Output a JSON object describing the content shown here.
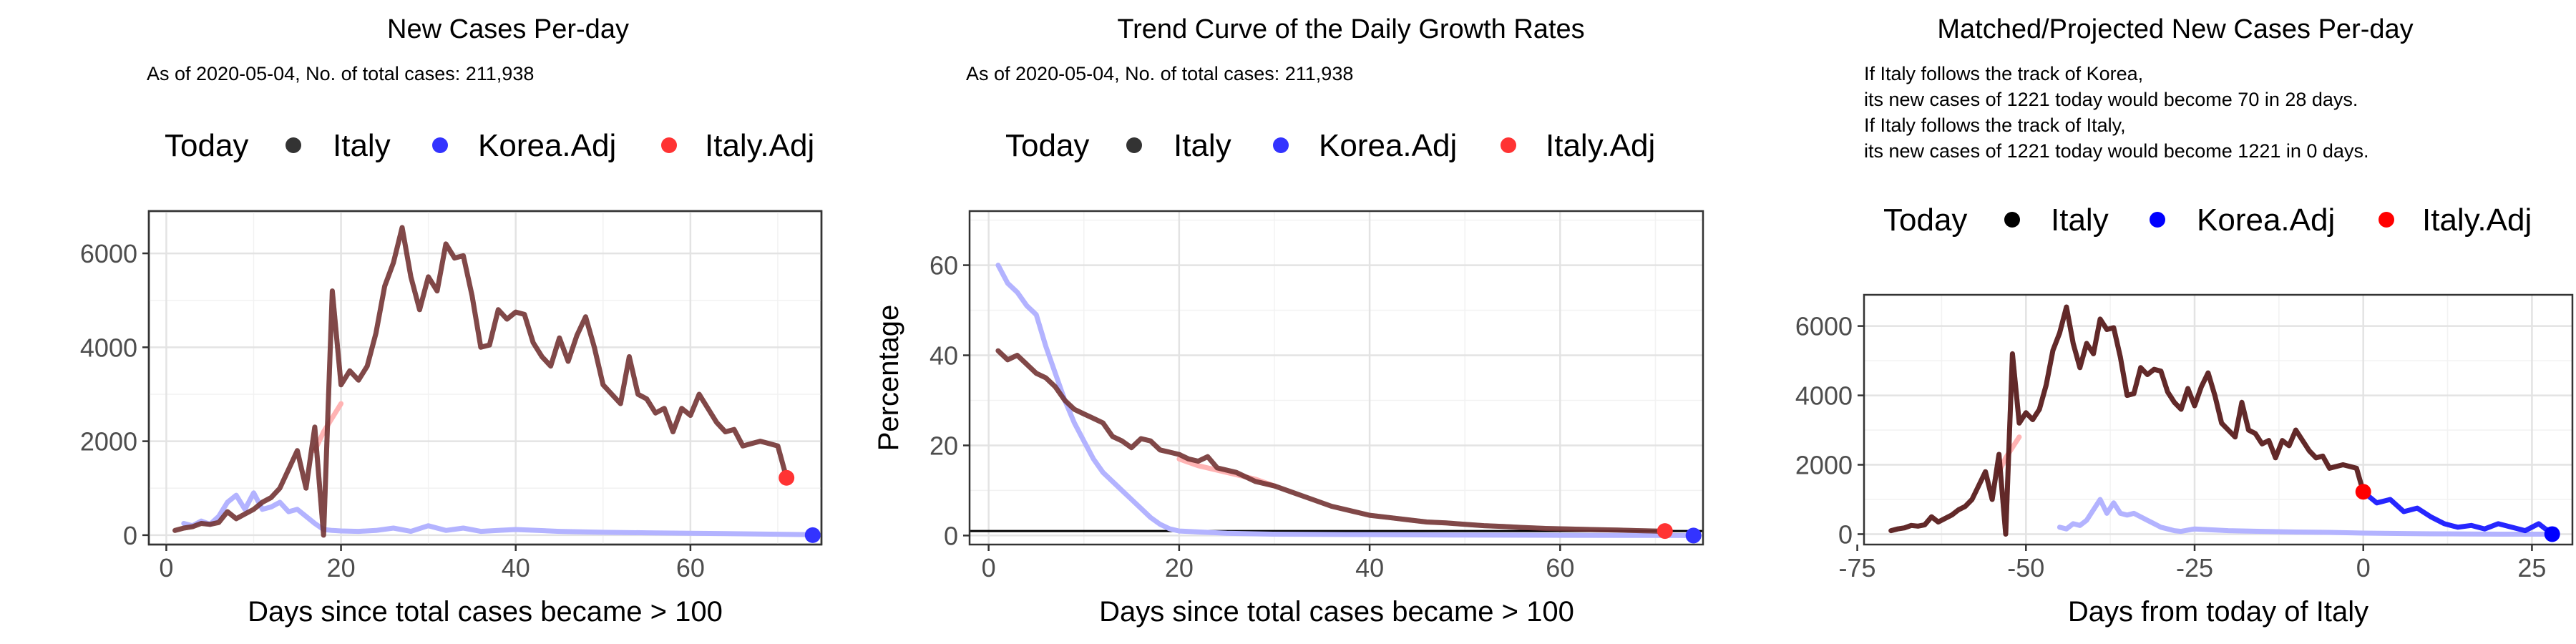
{
  "chart_data": [
    {
      "type": "line",
      "title": "New Cases Per-day",
      "subtitle": "As of 2020-05-04, No. of total cases: 211,938",
      "xlabel": "Days since total cases became > 100",
      "ylabel": "",
      "xlim": [
        -2,
        75
      ],
      "ylim": [
        -200,
        6900
      ],
      "xticks": [
        0,
        20,
        40,
        60
      ],
      "yticks": [
        0,
        2000,
        4000,
        6000
      ],
      "xtick_labels": [
        "0",
        "20",
        "40",
        "60"
      ],
      "ytick_labels": [
        "0",
        "2000",
        "4000",
        "6000"
      ],
      "grid": true,
      "legend_position": "top",
      "legend": {
        "title": "Today",
        "entries": [
          {
            "label": "Italy",
            "color": "#333333"
          },
          {
            "label": "Korea.Adj",
            "color": "#3333ff"
          },
          {
            "label": "Italy.Adj",
            "color": "#ff3333"
          }
        ]
      },
      "series": [
        {
          "role": "korea-adj",
          "color": "#b3b3ff",
          "x": [
            2,
            3,
            4,
            5,
            6,
            7,
            8,
            9,
            10,
            11,
            12,
            13,
            14,
            15,
            16,
            17,
            18,
            19,
            20,
            22,
            24,
            26,
            28,
            30,
            32,
            34,
            36,
            38,
            40,
            45,
            50,
            55,
            60,
            65,
            70,
            74
          ],
          "y": [
            250,
            200,
            300,
            230,
            400,
            700,
            850,
            550,
            900,
            550,
            600,
            700,
            500,
            550,
            400,
            250,
            120,
            100,
            90,
            80,
            100,
            150,
            80,
            200,
            100,
            150,
            80,
            100,
            120,
            80,
            60,
            50,
            40,
            30,
            20,
            10
          ]
        },
        {
          "role": "italy-adj",
          "color": "#ffb3b3",
          "x": [
            17,
            18,
            19,
            20
          ],
          "y": [
            1800,
            2200,
            2500,
            2800
          ]
        },
        {
          "role": "italy",
          "color": "#333333",
          "x": [
            1,
            2,
            3,
            4,
            5,
            6,
            7,
            8,
            9,
            10,
            11,
            12,
            13,
            14,
            15,
            16,
            17,
            18,
            19,
            20,
            21,
            22,
            23,
            24,
            25,
            26,
            27,
            28,
            29,
            30,
            31,
            32,
            33,
            34,
            35,
            36,
            37,
            38,
            39,
            40,
            41,
            42,
            43,
            44,
            45,
            46,
            47,
            48,
            49,
            50,
            51,
            52,
            53,
            54,
            55,
            56,
            57,
            58,
            59,
            60,
            61,
            62,
            63,
            64,
            65,
            66,
            67,
            68,
            69,
            70,
            71
          ],
          "y": [
            100,
            150,
            180,
            250,
            230,
            270,
            500,
            350,
            450,
            550,
            700,
            800,
            1000,
            1400,
            1800,
            1000,
            2300,
            0,
            5200,
            3200,
            3500,
            3300,
            3600,
            4300,
            5300,
            5800,
            6550,
            5500,
            4800,
            5500,
            5200,
            6200,
            5900,
            5950,
            5100,
            4000,
            4050,
            4800,
            4600,
            4750,
            4700,
            4100,
            3800,
            3600,
            4200,
            3700,
            4250,
            4650,
            4000,
            3200,
            3000,
            2800,
            3800,
            3000,
            2900,
            2600,
            2700,
            2200,
            2700,
            2550,
            3000,
            2700,
            2400,
            2200,
            2250,
            1900,
            1950,
            2000,
            1950,
            1900,
            1220
          ]
        },
        {
          "role": "korea-adj-point",
          "color": "#3333ff",
          "x": [
            74
          ],
          "y": [
            0
          ]
        },
        {
          "role": "italy-adj-point",
          "color": "#ff3333",
          "x": [
            71
          ],
          "y": [
            1221
          ]
        }
      ]
    },
    {
      "type": "line",
      "title": "Trend Curve of the Daily Growth Rates",
      "subtitle": "As of 2020-05-04, No. of total cases: 211,938",
      "xlabel": "Days since total cases became > 100",
      "ylabel": "Percentage",
      "xlim": [
        -2,
        75
      ],
      "ylim": [
        -2,
        72
      ],
      "xticks": [
        0,
        20,
        40,
        60
      ],
      "yticks": [
        0,
        20,
        40,
        60
      ],
      "xtick_labels": [
        "0",
        "20",
        "40",
        "60"
      ],
      "ytick_labels": [
        "0",
        "20",
        "40",
        "60"
      ],
      "grid": true,
      "hline": 1,
      "legend_position": "top",
      "legend": {
        "title": "Today",
        "entries": [
          {
            "label": "Italy",
            "color": "#333333"
          },
          {
            "label": "Korea.Adj",
            "color": "#3333ff"
          },
          {
            "label": "Italy.Adj",
            "color": "#ff3333"
          }
        ]
      },
      "series": [
        {
          "role": "korea-adj",
          "color": "#b3b3ff",
          "x": [
            1,
            2,
            3,
            4,
            5,
            6,
            7,
            8,
            9,
            10,
            11,
            12,
            13,
            14,
            15,
            16,
            17,
            18,
            19,
            20,
            22,
            25,
            30,
            40,
            50,
            60,
            70,
            74
          ],
          "y": [
            60,
            56,
            54,
            51,
            49,
            42,
            36,
            30,
            25,
            21,
            17,
            14,
            12,
            10,
            8,
            6,
            4,
            2.5,
            1.5,
            1,
            0.8,
            0.5,
            0.3,
            0.2,
            0.1,
            0.05,
            0.02,
            0
          ]
        },
        {
          "role": "italy-adj",
          "color": "#ffb3b3",
          "x": [
            20,
            22,
            25,
            28,
            30
          ],
          "y": [
            17,
            15.5,
            14,
            12.5,
            11
          ]
        },
        {
          "role": "italy",
          "color": "#333333",
          "x": [
            1,
            2,
            3,
            4,
            5,
            6,
            7,
            8,
            9,
            10,
            11,
            12,
            13,
            14,
            15,
            16,
            17,
            18,
            19,
            20,
            21,
            22,
            23,
            24,
            26,
            28,
            30,
            32,
            34,
            36,
            38,
            40,
            42,
            44,
            46,
            48,
            50,
            52,
            54,
            56,
            58,
            60,
            62,
            64,
            66,
            68,
            70,
            71
          ],
          "y": [
            41,
            39,
            40,
            38,
            36,
            35,
            33,
            30,
            28,
            27,
            26,
            25,
            22,
            21,
            19.5,
            21.5,
            21,
            19,
            18.5,
            18,
            17,
            16.5,
            17.5,
            15,
            14,
            12,
            11,
            9.5,
            8,
            6.5,
            5.5,
            4.5,
            4,
            3.5,
            3,
            2.8,
            2.5,
            2.2,
            2,
            1.8,
            1.6,
            1.5,
            1.4,
            1.3,
            1.2,
            1.1,
            1,
            0.9
          ]
        },
        {
          "role": "korea-adj-point",
          "color": "#3333ff",
          "x": [
            74
          ],
          "y": [
            0
          ]
        },
        {
          "role": "italy-adj-point",
          "color": "#ff3333",
          "x": [
            71
          ],
          "y": [
            1
          ]
        }
      ]
    },
    {
      "type": "line",
      "title": "Matched/Projected New Cases Per-day",
      "annotations": [
        "If Italy follows the track of Korea,",
        "its new cases of 1221 today would become 70 in 28 days.",
        "If Italy follows the track of Italy,",
        "its new cases of 1221 today would become 1221 in 0 days."
      ],
      "xlabel": "Days from today of Italy",
      "ylabel": "",
      "xlim": [
        -74,
        31
      ],
      "ylim": [
        -300,
        6900
      ],
      "xticks": [
        -75,
        -50,
        -25,
        0,
        25
      ],
      "yticks": [
        0,
        2000,
        4000,
        6000
      ],
      "xtick_labels": [
        "-75",
        "-50",
        "-25",
        "0",
        "25"
      ],
      "ytick_labels": [
        "0",
        "2000",
        "4000",
        "6000"
      ],
      "grid": true,
      "legend_position": "top",
      "legend": {
        "title": "Today",
        "entries": [
          {
            "label": "Italy",
            "color": "#000000"
          },
          {
            "label": "Korea.Adj",
            "color": "#0000ff"
          },
          {
            "label": "Italy.Adj",
            "color": "#ff0000"
          }
        ]
      },
      "series": [
        {
          "role": "korea-adj-past",
          "color": "#b3b3ff",
          "x": [
            -45,
            -44,
            -43,
            -42,
            -41,
            -40,
            -39,
            -38,
            -37,
            -36,
            -35,
            -34,
            -33,
            -32,
            -31,
            -30,
            -29,
            -28,
            -27,
            -25,
            -20,
            -15,
            -10,
            -5,
            0,
            5,
            10,
            15,
            20,
            25,
            28
          ],
          "y": [
            200,
            150,
            300,
            250,
            400,
            700,
            1000,
            600,
            900,
            600,
            550,
            600,
            500,
            400,
            300,
            200,
            150,
            100,
            80,
            150,
            100,
            80,
            60,
            50,
            30,
            20,
            10,
            5,
            0,
            0,
            0
          ]
        },
        {
          "role": "italy-adj",
          "color": "#ffb3b3",
          "x": [
            -54,
            -53,
            -52,
            -51
          ],
          "y": [
            1800,
            2200,
            2500,
            2800
          ]
        },
        {
          "role": "italy",
          "color": "#000000",
          "x": [
            -70,
            -69,
            -68,
            -67,
            -66,
            -65,
            -64,
            -63,
            -62,
            -61,
            -60,
            -59,
            -58,
            -57,
            -56,
            -55,
            -54,
            -53,
            -52,
            -51,
            -50,
            -49,
            -48,
            -47,
            -46,
            -45,
            -44,
            -43,
            -42,
            -41,
            -40,
            -39,
            -38,
            -37,
            -36,
            -35,
            -34,
            -33,
            -32,
            -31,
            -30,
            -29,
            -28,
            -27,
            -26,
            -25,
            -24,
            -23,
            -22,
            -21,
            -20,
            -19,
            -18,
            -17,
            -16,
            -15,
            -14,
            -13,
            -12,
            -11,
            -10,
            -9,
            -8,
            -7,
            -6,
            -5,
            -4,
            -3,
            -2,
            -1,
            0
          ],
          "y": [
            100,
            150,
            180,
            250,
            230,
            270,
            500,
            350,
            450,
            550,
            700,
            800,
            1000,
            1400,
            1800,
            1000,
            2300,
            0,
            5200,
            3200,
            3500,
            3300,
            3600,
            4300,
            5300,
            5800,
            6550,
            5500,
            4800,
            5500,
            5200,
            6200,
            5900,
            5950,
            5100,
            4000,
            4050,
            4800,
            4600,
            4750,
            4700,
            4100,
            3800,
            3600,
            4200,
            3700,
            4250,
            4650,
            4000,
            3200,
            3000,
            2800,
            3800,
            3000,
            2900,
            2600,
            2700,
            2200,
            2700,
            2550,
            3000,
            2700,
            2400,
            2200,
            2250,
            1900,
            1950,
            2000,
            1950,
            1900,
            1220
          ]
        },
        {
          "role": "korea-adj-projected",
          "color": "#0000ff",
          "x": [
            0,
            2,
            4,
            6,
            8,
            10,
            12,
            14,
            16,
            18,
            20,
            22,
            24,
            26,
            27,
            28
          ],
          "y": [
            1221,
            900,
            1000,
            650,
            750,
            500,
            300,
            200,
            250,
            150,
            300,
            200,
            100,
            300,
            150,
            70
          ]
        },
        {
          "role": "korea-adj-point",
          "color": "#0000ff",
          "x": [
            28
          ],
          "y": [
            0
          ]
        },
        {
          "role": "italy-adj-point",
          "color": "#ff0000",
          "x": [
            0
          ],
          "y": [
            1221
          ]
        }
      ]
    }
  ]
}
